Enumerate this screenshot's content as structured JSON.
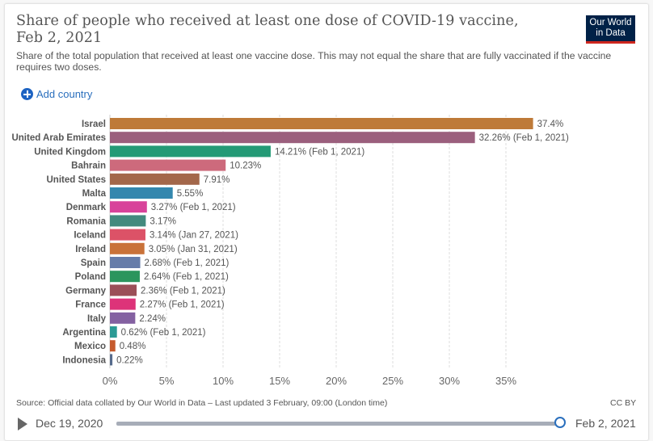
{
  "header": {
    "title": "Share of people who received at least one dose of COVID-19 vaccine, Feb 2, 2021",
    "subtitle": "Share of the total population that received at least one vaccine dose. This may not equal the share that are fully vaccinated if the vaccine requires two doses.",
    "logo_line1": "Our World",
    "logo_line2": "in Data"
  },
  "controls": {
    "add_country_label": "Add country",
    "add_icon": "plus-circle-icon",
    "play_icon": "play-icon",
    "timeline_start": "Dec 19, 2020",
    "timeline_end": "Feb 2, 2021",
    "timeline_position": 1.0
  },
  "footer": {
    "source": "Source: Official data collated by Our World in Data – Last updated 3 February, 09:00 (London time)",
    "license": "CC BY"
  },
  "chart_data": {
    "type": "bar",
    "orientation": "horizontal",
    "title": "Share of people who received at least one dose of COVID-19 vaccine, Feb 2, 2021",
    "xlabel": "",
    "ylabel": "",
    "xlim": [
      0,
      37.4
    ],
    "grid": "vertical-dashed",
    "x_ticks": [
      0,
      5,
      10,
      15,
      20,
      25,
      30,
      35
    ],
    "x_tick_labels": [
      "0%",
      "5%",
      "10%",
      "15%",
      "20%",
      "25%",
      "30%",
      "35%"
    ],
    "categories": [
      "Israel",
      "United Arab Emirates",
      "United Kingdom",
      "Bahrain",
      "United States",
      "Malta",
      "Denmark",
      "Romania",
      "Iceland",
      "Ireland",
      "Spain",
      "Poland",
      "Germany",
      "France",
      "Italy",
      "Argentina",
      "Mexico",
      "Indonesia"
    ],
    "values": [
      37.4,
      32.26,
      14.21,
      10.23,
      7.91,
      5.55,
      3.27,
      3.17,
      3.14,
      3.05,
      2.68,
      2.64,
      2.36,
      2.27,
      2.24,
      0.62,
      0.48,
      0.22
    ],
    "labels": [
      "37.4%",
      "32.26% (Feb 1, 2021)",
      "14.21% (Feb 1, 2021)",
      "10.23%",
      "7.91%",
      "5.55%",
      "3.27% (Feb 1, 2021)",
      "3.17%",
      "3.14% (Jan 27, 2021)",
      "3.05% (Jan 31, 2021)",
      "2.68% (Feb 1, 2021)",
      "2.64% (Feb 1, 2021)",
      "2.36% (Feb 1, 2021)",
      "2.27% (Feb 1, 2021)",
      "2.24%",
      "0.62% (Feb 1, 2021)",
      "0.48%",
      "0.22%"
    ],
    "colors": [
      "#be7a38",
      "#9b5f7d",
      "#249a76",
      "#cd6a7c",
      "#a3674a",
      "#3487ae",
      "#d8439a",
      "#438a7e",
      "#dc5267",
      "#c97239",
      "#667ca9",
      "#2b955d",
      "#9b4f58",
      "#dd3379",
      "#8461a1",
      "#2b9a95",
      "#c55a2d",
      "#566b8c"
    ]
  }
}
